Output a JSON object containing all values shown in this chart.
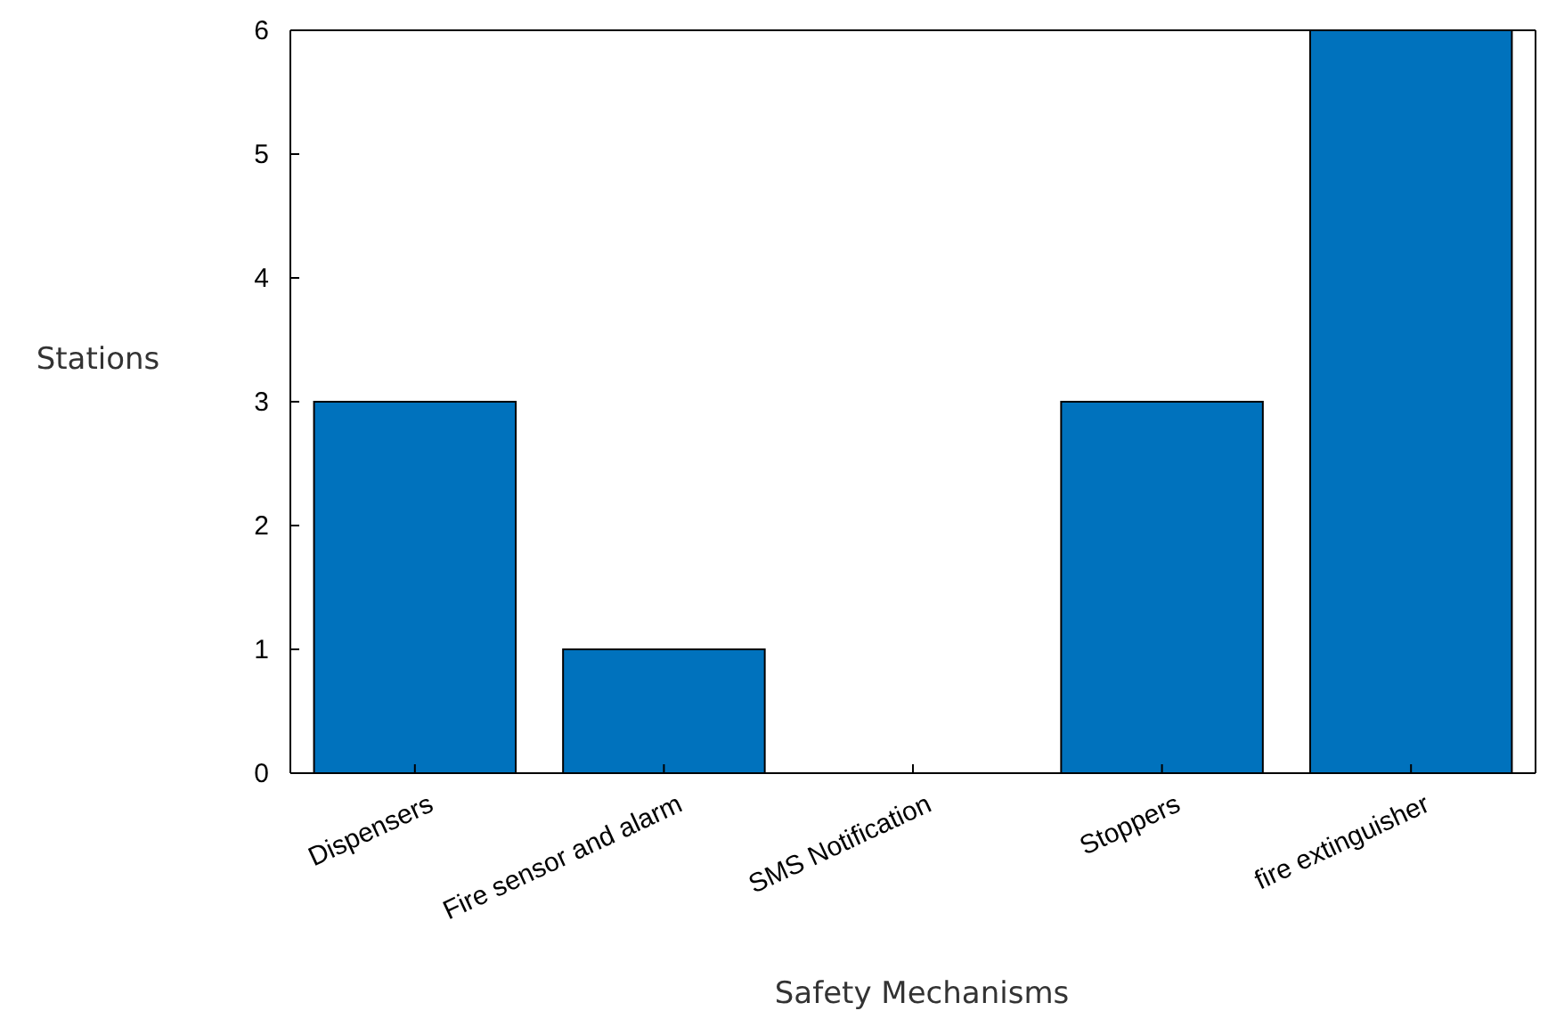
{
  "chart_data": {
    "type": "bar",
    "xlabel": "Safety Mechanisms",
    "ylabel": "Stations",
    "categories": [
      "Dispensers",
      "Fire sensor and alarm",
      "SMS Notification",
      "Stoppers",
      "fire extinguisher"
    ],
    "values": [
      3,
      1,
      0,
      3,
      6
    ],
    "color": "#0072bd",
    "ylim": [
      0,
      6
    ],
    "yticks": [
      0,
      1,
      2,
      3,
      4,
      5,
      6
    ],
    "grid": false
  }
}
